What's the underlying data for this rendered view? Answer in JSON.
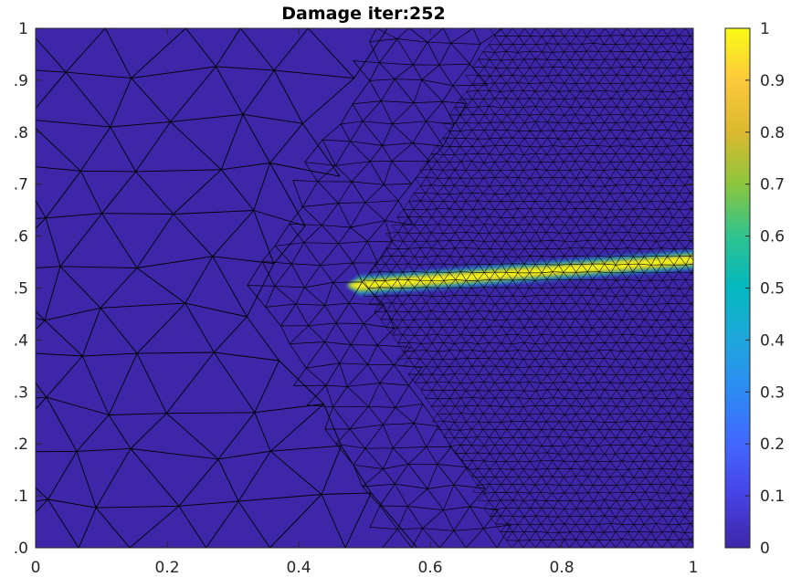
{
  "chart_data": {
    "type": "heatmap",
    "title": "Damage iter:252",
    "xlim": [
      0,
      1
    ],
    "ylim": [
      0,
      1
    ],
    "x_ticks": [
      0,
      0.2,
      0.4,
      0.6,
      0.8,
      1
    ],
    "x_tick_labels": [
      "0",
      "0.2",
      "0.4",
      "0.6",
      "0.8",
      "1"
    ],
    "y_ticks": [
      0,
      0.1,
      0.2,
      0.3,
      0.4,
      0.5,
      0.6,
      0.7,
      0.8,
      0.9,
      1
    ],
    "y_tick_labels": [
      ".0",
      ".1",
      ".2",
      ".3",
      ".4",
      ".5",
      ".6",
      ".7",
      ".8",
      ".9",
      "1"
    ],
    "colorbar": {
      "range": [
        0,
        1
      ],
      "ticks": [
        0,
        0.1,
        0.2,
        0.3,
        0.4,
        0.5,
        0.6,
        0.7,
        0.8,
        0.9,
        1
      ],
      "tick_labels": [
        "0",
        "0.1",
        "0.2",
        "0.3",
        "0.4",
        "0.5",
        "0.6",
        "0.7",
        "0.8",
        "0.9",
        "1"
      ],
      "colormap": "parula"
    },
    "crack": {
      "start": [
        0.48,
        0.505
      ],
      "end": [
        1.0,
        0.555
      ],
      "peak_damage": 1.0
    },
    "mesh": {
      "coarse_region": "x < 0.5 (left)",
      "fine_region": "right of diagonal from (0.72, 0) to (0.5, 0.5) to (0.7, 1)"
    },
    "colors": {
      "background_damage": "#3d26a8",
      "crack_core": "#f9fb0e",
      "mesh_edges": "#000000"
    }
  }
}
